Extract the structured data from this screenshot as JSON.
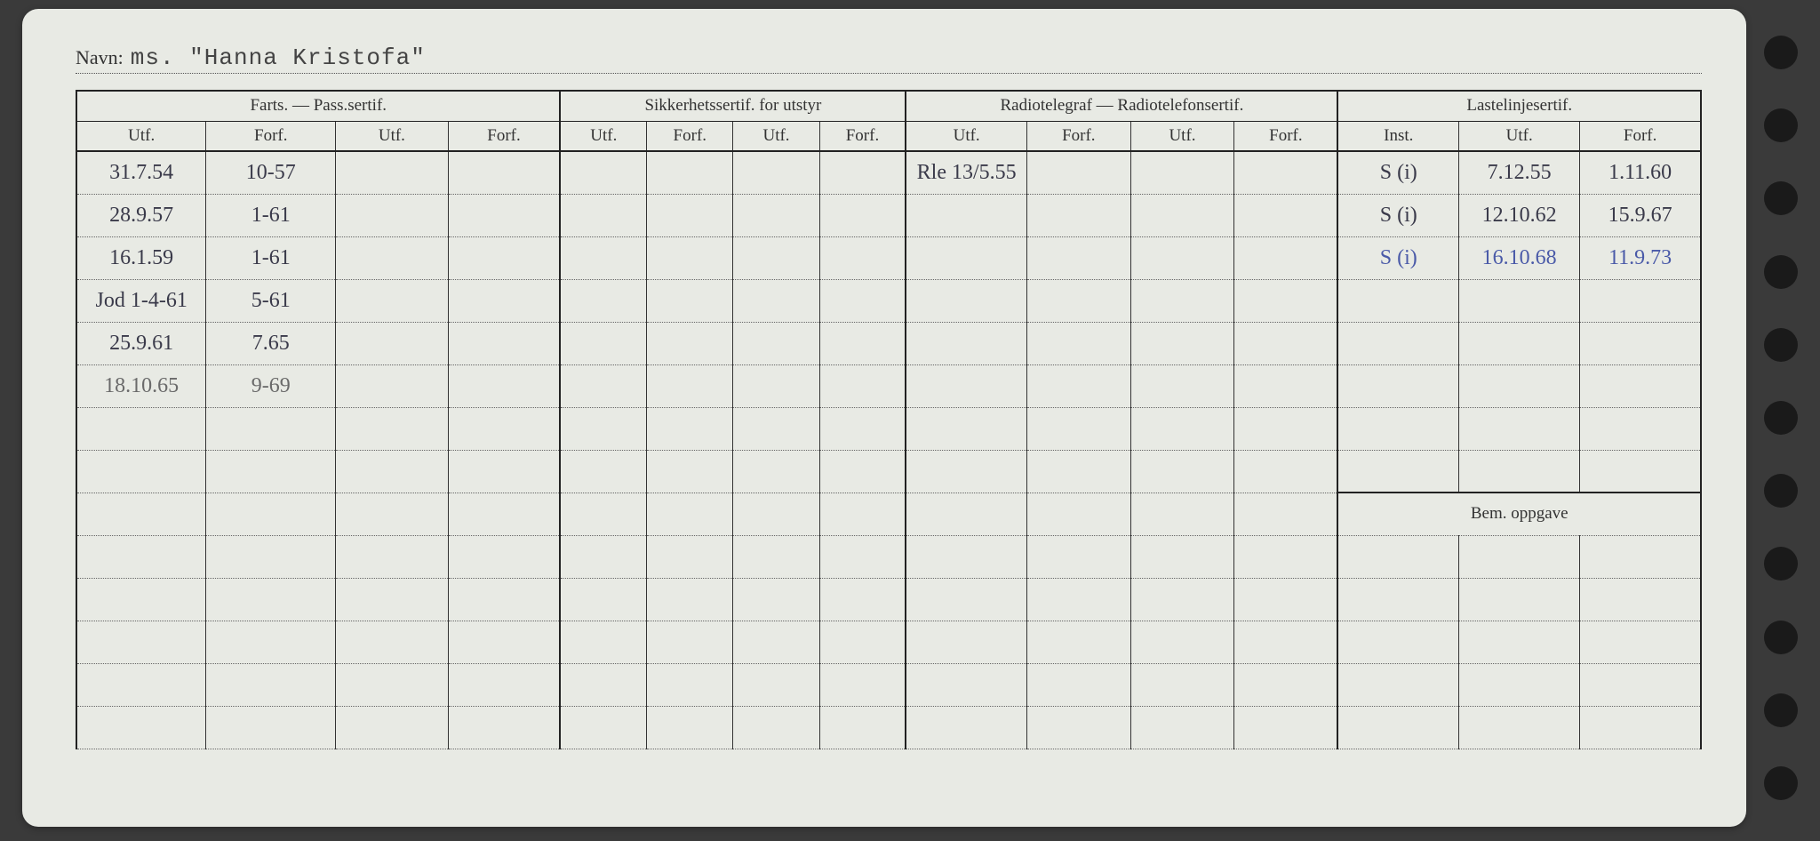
{
  "name_label": "Navn:",
  "name_value": "ms. \"Hanna Kristofa\"",
  "sections": {
    "farts": "Farts. — Pass.sertif.",
    "sikk": "Sikkerhetssertif. for utstyr",
    "radio": "Radiotelegraf — Radiotelefonsertif.",
    "laste": "Lastelinjesertif."
  },
  "subheaders": {
    "utf": "Utf.",
    "forf": "Forf.",
    "inst": "Inst."
  },
  "bem_label": "Bem. oppgave",
  "rows": [
    {
      "farts_utf": "31.7.54",
      "farts_forf": "10-57",
      "radio_utf": "Rle 13/5.55",
      "laste_inst": "S (i)",
      "laste_utf": "7.12.55",
      "laste_forf": "1.11.60"
    },
    {
      "farts_utf": "28.9.57",
      "farts_forf": "1-61",
      "laste_inst": "S (i)",
      "laste_utf": "12.10.62",
      "laste_forf": "15.9.67"
    },
    {
      "farts_utf": "16.1.59",
      "farts_forf": "1-61",
      "laste_inst": "S (i)",
      "laste_utf": "16.10.68",
      "laste_forf": "11.9.73",
      "laste_blue": true
    },
    {
      "farts_utf": "Jod 1-4-61",
      "farts_forf": "5-61"
    },
    {
      "farts_utf": "25.9.61",
      "farts_forf": "7.65"
    },
    {
      "farts_utf": "18.10.65",
      "farts_forf": "9-69",
      "pencil": true
    },
    {},
    {}
  ],
  "bem_rows_after": 5,
  "colors": {
    "paper": "#e8eae4",
    "ink": "#333333",
    "handwrite": "#3a3a4a",
    "blue_ink": "#4a5aa8",
    "pencil": "#6a6a6a",
    "bg": "#3a3a3a"
  }
}
